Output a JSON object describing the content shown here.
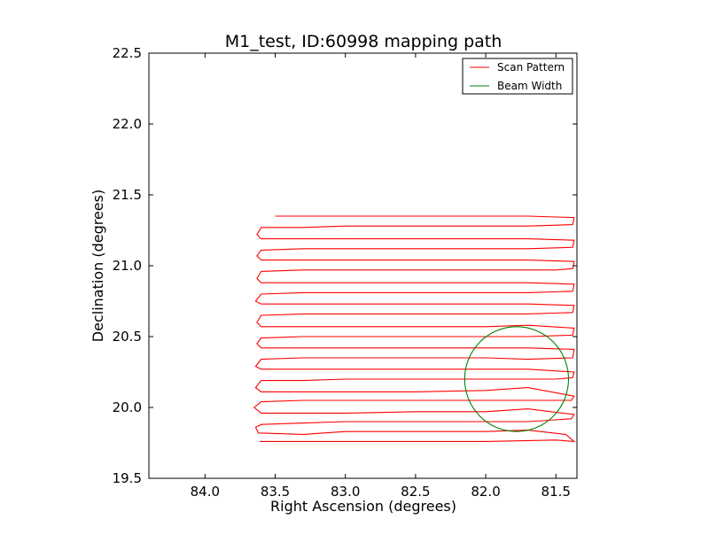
{
  "chart_data": {
    "type": "line",
    "title": "M1_test, ID:60998 mapping path",
    "xlabel": "Right Ascension (degrees)",
    "ylabel": "Declination (degrees)",
    "xlim": [
      84.4,
      81.35
    ],
    "ylim": [
      19.5,
      22.5
    ],
    "x_inverted": true,
    "x_ticks": [
      84.0,
      83.5,
      83.0,
      82.5,
      82.0,
      81.5
    ],
    "x_tick_labels": [
      "84.0",
      "83.5",
      "83.0",
      "82.5",
      "82.0",
      "81.5"
    ],
    "y_ticks": [
      19.5,
      20.0,
      20.5,
      21.0,
      21.5,
      22.0,
      22.5
    ],
    "y_tick_labels": [
      "19.5",
      "20.0",
      "20.5",
      "21.0",
      "21.5",
      "22.0",
      "22.5"
    ],
    "grid": false,
    "legend": {
      "position": "top-right",
      "entries": [
        "Scan Pattern",
        "Beam Width"
      ]
    },
    "series": [
      {
        "name": "Scan Pattern",
        "type": "line",
        "color": "#ff0000",
        "x": [
          83.61,
          83.3,
          83.0,
          82.5,
          82.0,
          81.5,
          81.37,
          81.43,
          81.7,
          82.0,
          82.5,
          83.0,
          83.3,
          83.62,
          83.64,
          83.6,
          83.3,
          83.0,
          82.5,
          82.0,
          81.7,
          81.39,
          81.37,
          81.7,
          82.0,
          82.5,
          83.0,
          83.3,
          83.6,
          83.65,
          83.6,
          83.3,
          83.0,
          82.5,
          82.0,
          81.7,
          81.39,
          81.37,
          81.7,
          82.0,
          82.5,
          83.0,
          83.3,
          83.6,
          83.64,
          83.6,
          83.3,
          83.0,
          82.5,
          82.0,
          81.5,
          81.38,
          81.37,
          81.7,
          82.0,
          82.5,
          83.0,
          83.3,
          83.6,
          83.64,
          83.6,
          83.3,
          83.0,
          82.5,
          82.0,
          81.7,
          81.38,
          81.37,
          81.7,
          82.0,
          82.5,
          83.0,
          83.3,
          83.6,
          83.63,
          83.6,
          83.3,
          83.0,
          82.5,
          82.0,
          81.7,
          81.38,
          81.37,
          81.7,
          82.0,
          82.5,
          83.0,
          83.3,
          83.6,
          83.63,
          83.6,
          83.3,
          83.0,
          82.5,
          82.0,
          81.7,
          81.38,
          81.37,
          81.7,
          82.0,
          82.5,
          83.0,
          83.3,
          83.6,
          83.64,
          83.6,
          83.3,
          83.0,
          82.5,
          82.0,
          81.7,
          81.38,
          81.37,
          81.7,
          82.0,
          82.5,
          83.0,
          83.3,
          83.6,
          83.63,
          83.6,
          83.3,
          83.0,
          82.5,
          82.0,
          81.5,
          81.38,
          81.37,
          81.7,
          82.0,
          82.5,
          83.0,
          83.3,
          83.6,
          83.63,
          83.6,
          83.3,
          83.0,
          82.5,
          82.0,
          81.7,
          81.38,
          81.37,
          81.7,
          82.0,
          82.5,
          83.0,
          83.3,
          83.6,
          83.63,
          83.6,
          83.3,
          83.0,
          82.5,
          82.0,
          81.7,
          81.38,
          81.37,
          81.7,
          82.0,
          82.5,
          83.0,
          83.3,
          83.5
        ],
        "y": [
          19.76,
          19.76,
          19.76,
          19.76,
          19.76,
          19.77,
          19.76,
          19.81,
          19.84,
          19.83,
          19.83,
          19.83,
          19.81,
          19.82,
          19.86,
          19.88,
          19.89,
          19.9,
          19.9,
          19.9,
          19.9,
          19.92,
          19.95,
          19.99,
          19.97,
          19.97,
          19.96,
          19.96,
          19.96,
          20.0,
          20.04,
          20.05,
          20.05,
          20.05,
          20.05,
          20.05,
          20.05,
          20.08,
          20.14,
          20.12,
          20.11,
          20.11,
          20.11,
          20.11,
          20.14,
          20.19,
          20.19,
          20.2,
          20.2,
          20.2,
          20.2,
          20.21,
          20.25,
          20.27,
          20.27,
          20.27,
          20.27,
          20.27,
          20.27,
          20.29,
          20.34,
          20.35,
          20.35,
          20.35,
          20.35,
          20.34,
          20.35,
          20.41,
          20.42,
          20.42,
          20.42,
          20.42,
          20.42,
          20.42,
          20.45,
          20.49,
          20.5,
          20.5,
          20.5,
          20.5,
          20.5,
          20.51,
          20.56,
          20.58,
          20.57,
          20.57,
          20.57,
          20.57,
          20.57,
          20.6,
          20.65,
          20.66,
          20.66,
          20.66,
          20.66,
          20.66,
          20.67,
          20.72,
          20.73,
          20.73,
          20.73,
          20.73,
          20.73,
          20.73,
          20.75,
          20.8,
          20.81,
          20.81,
          20.81,
          20.81,
          20.81,
          20.82,
          20.87,
          20.88,
          20.88,
          20.88,
          20.88,
          20.88,
          20.88,
          20.91,
          20.96,
          20.97,
          20.97,
          20.97,
          20.97,
          20.97,
          20.98,
          21.03,
          21.04,
          21.04,
          21.04,
          21.04,
          21.04,
          21.04,
          21.07,
          21.11,
          21.12,
          21.12,
          21.12,
          21.12,
          21.12,
          21.13,
          21.18,
          21.19,
          21.19,
          21.19,
          21.19,
          21.19,
          21.19,
          21.22,
          21.27,
          21.27,
          21.28,
          21.28,
          21.28,
          21.28,
          21.29,
          21.34,
          21.35,
          21.35,
          21.35,
          21.35,
          21.35,
          21.35
        ]
      },
      {
        "name": "Beam Width",
        "type": "circle",
        "color": "#008000",
        "center": [
          81.78,
          20.2
        ],
        "radius": 0.37
      }
    ]
  }
}
